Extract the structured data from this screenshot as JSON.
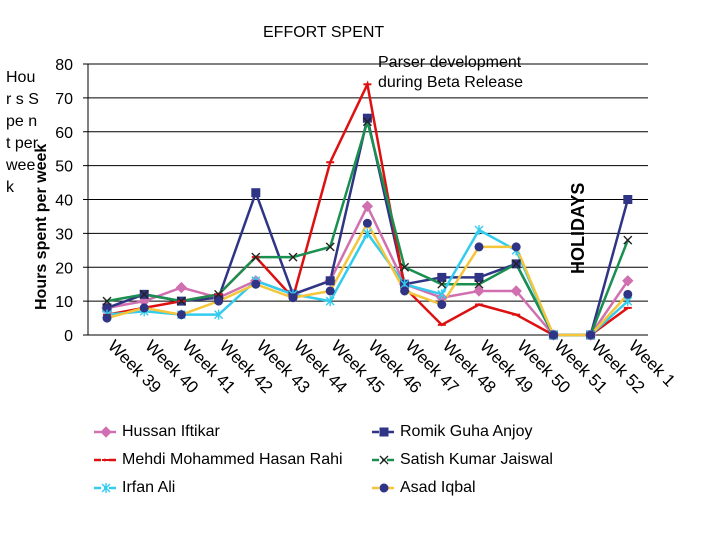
{
  "chart_data": {
    "type": "line",
    "title": "EFFORT SPENT",
    "ylabel_main": "Hours spent per week",
    "ylabel_overlay": "Hour s Spe nt per wee k",
    "annotation": [
      "Parser development",
      "during Beta Release"
    ],
    "holiday_label": "HOLIDAYS",
    "ylim": [
      0,
      80
    ],
    "yticks": [
      0,
      10,
      20,
      30,
      40,
      50,
      60,
      70,
      80
    ],
    "grid": true,
    "legend_position": "bottom",
    "categories": [
      "Week 39",
      "Week 40",
      "Week 41",
      "Week 42",
      "Week 43",
      "Week 44",
      "Week 45",
      "Week 46",
      "Week 47",
      "Week 48",
      "Week 49",
      "Week 50",
      "Week 51",
      "Week 52",
      "Week 1"
    ],
    "series": [
      {
        "name": "Hussan Iftikar",
        "color": "#d070b0",
        "marker": "diamond",
        "dash": "dashdot",
        "values": [
          8,
          10,
          14,
          11,
          16,
          12,
          16,
          38,
          15,
          11,
          13,
          13,
          0,
          0,
          16
        ]
      },
      {
        "name": "Romik Guha Anjoy",
        "color": "#2f3584",
        "marker": "square",
        "dash": "dashdot",
        "values": [
          8,
          12,
          10,
          11,
          42,
          12,
          16,
          64,
          15,
          17,
          17,
          21,
          0,
          0,
          40
        ]
      },
      {
        "name": "Mehdi Mohammed Hasan Rahi",
        "color": "#dd1111",
        "marker": "dash",
        "dash": "dashdot",
        "values": [
          6,
          8,
          10,
          12,
          23,
          11,
          51,
          74,
          14,
          3,
          9,
          6,
          0,
          0,
          8
        ]
      },
      {
        "name": "Satish Kumar Jaiswal",
        "color": "#1a9050",
        "marker": "x",
        "dash": "dashdot",
        "values": [
          10,
          12,
          10,
          12,
          23,
          23,
          26,
          63,
          20,
          15,
          15,
          21,
          0,
          0,
          28
        ]
      },
      {
        "name": "Irfan Ali",
        "color": "#33ccee",
        "marker": "star",
        "dash": "dashdot",
        "values": [
          6,
          7,
          6,
          6,
          16,
          12,
          10,
          30,
          15,
          12,
          31,
          25,
          0,
          0,
          10
        ]
      },
      {
        "name": "Asad Iqbal",
        "color": "#f5c53a",
        "marker": "circle",
        "dash": "dashdot",
        "values": [
          5,
          8,
          6,
          10,
          15,
          11,
          13,
          33,
          13,
          9,
          26,
          26,
          0,
          0,
          12
        ]
      }
    ]
  }
}
